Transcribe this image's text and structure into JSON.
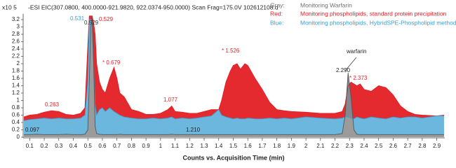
{
  "chart_data": {
    "type": "line",
    "y_label": "x10 5",
    "scan_label": "-ESI EIC(307.0800, 400.0000-921.9820, 922.0374-950.0000) Scan Frag=175.0V 102612108.d",
    "legend": [
      {
        "key": "Gray:",
        "text": "Monitoring Warfarin",
        "color": "#6f6f6f"
      },
      {
        "key": "Red:",
        "text": "Monitoring phospholipids, standard protein precipitation",
        "color": "#e31e24"
      },
      {
        "key": "Blue:",
        "text": "Monitoring phospholipids, HybridSPE-Phospholipid method",
        "color": "#3a9fd2"
      }
    ],
    "x_label": "Counts vs. Acquisition Time (min)",
    "xlim": [
      0.055,
      2.955
    ],
    "ylim": [
      0,
      3.3
    ],
    "xticks": [
      0.1,
      0.2,
      0.3,
      0.4,
      0.5,
      0.6,
      0.7,
      0.8,
      0.9,
      1,
      1.1,
      1.2,
      1.3,
      1.4,
      1.5,
      1.6,
      1.7,
      1.8,
      1.9,
      2,
      2.1,
      2.2,
      2.3,
      2.4,
      2.5,
      2.6,
      2.7,
      2.8,
      2.9
    ],
    "yticks": [
      0,
      0.2,
      0.4,
      0.6,
      0.8,
      1,
      1.2,
      1.4,
      1.6,
      1.8,
      2,
      2.2,
      2.4,
      2.6,
      2.8,
      3,
      3.2
    ],
    "x": [
      0.06,
      0.1,
      0.15,
      0.2,
      0.25,
      0.3,
      0.35,
      0.4,
      0.45,
      0.48,
      0.5,
      0.51,
      0.52,
      0.53,
      0.54,
      0.55,
      0.56,
      0.58,
      0.6,
      0.62,
      0.65,
      0.68,
      0.7,
      0.72,
      0.75,
      0.8,
      0.85,
      0.9,
      0.95,
      1.0,
      1.05,
      1.077,
      1.1,
      1.15,
      1.2,
      1.25,
      1.3,
      1.35,
      1.4,
      1.42,
      1.45,
      1.48,
      1.5,
      1.526,
      1.55,
      1.58,
      1.6,
      1.65,
      1.7,
      1.75,
      1.8,
      1.85,
      1.9,
      2.0,
      2.1,
      2.2,
      2.25,
      2.27,
      2.29,
      2.31,
      2.33,
      2.35,
      2.373,
      2.4,
      2.45,
      2.5,
      2.55,
      2.6,
      2.65,
      2.7,
      2.75,
      2.8,
      2.9,
      2.95
    ],
    "series": [
      {
        "name": "Gray",
        "color": "#555555",
        "fill": "#8a8a8a",
        "values": [
          0.07,
          0.07,
          0.08,
          0.07,
          0.07,
          0.07,
          0.08,
          0.07,
          0.07,
          0.08,
          0.2,
          1.5,
          3.0,
          3.3,
          2.0,
          0.3,
          0.1,
          0.08,
          0.07,
          0.07,
          0.07,
          0.07,
          0.07,
          0.08,
          0.07,
          0.07,
          0.07,
          0.07,
          0.07,
          0.07,
          0.07,
          0.08,
          0.07,
          0.07,
          0.07,
          0.07,
          0.07,
          0.07,
          0.07,
          0.07,
          0.07,
          0.07,
          0.07,
          0.07,
          0.07,
          0.07,
          0.07,
          0.07,
          0.07,
          0.07,
          0.07,
          0.07,
          0.07,
          0.07,
          0.07,
          0.07,
          0.1,
          0.6,
          1.75,
          1.1,
          0.2,
          0.08,
          0.07,
          0.07,
          0.07,
          0.07,
          0.07,
          0.07,
          0.07,
          0.07,
          0.07,
          0.07,
          0.07,
          0.07
        ]
      },
      {
        "name": "Red",
        "color": "#e31e24",
        "fill": "#e31e24",
        "values": [
          0.55,
          0.6,
          0.62,
          0.68,
          0.72,
          0.7,
          0.62,
          0.6,
          0.65,
          0.8,
          2.5,
          3.3,
          3.3,
          3.3,
          3.1,
          2.8,
          2.0,
          1.5,
          1.3,
          1.2,
          1.6,
          1.9,
          1.6,
          1.2,
          1.1,
          0.75,
          0.7,
          0.62,
          0.62,
          0.65,
          0.75,
          0.85,
          0.7,
          0.68,
          0.65,
          0.65,
          0.7,
          0.75,
          0.75,
          1.0,
          1.5,
          1.8,
          1.95,
          2.0,
          1.85,
          2.0,
          1.95,
          1.6,
          1.3,
          0.95,
          0.75,
          0.72,
          0.7,
          0.68,
          0.65,
          0.65,
          0.7,
          0.9,
          1.4,
          1.5,
          1.45,
          1.4,
          1.45,
          1.3,
          1.25,
          1.4,
          1.35,
          1.15,
          0.85,
          0.7,
          0.62,
          0.6,
          0.58,
          0.6
        ]
      },
      {
        "name": "Blue",
        "color": "#3a9fd2",
        "fill": "#3a9fd2",
        "values": [
          0.45,
          0.48,
          0.5,
          0.52,
          0.5,
          0.52,
          0.5,
          0.5,
          0.52,
          0.6,
          1.5,
          3.2,
          3.2,
          3.0,
          2.0,
          0.9,
          0.6,
          0.75,
          0.8,
          0.7,
          0.8,
          0.7,
          0.65,
          0.6,
          0.55,
          0.52,
          0.5,
          0.5,
          0.52,
          0.5,
          0.52,
          0.55,
          0.5,
          0.52,
          0.5,
          0.52,
          0.55,
          0.58,
          0.75,
          0.6,
          0.55,
          0.52,
          0.5,
          0.52,
          0.5,
          0.5,
          0.52,
          0.5,
          0.5,
          0.52,
          0.5,
          0.52,
          0.5,
          0.55,
          0.52,
          0.5,
          0.52,
          0.55,
          0.55,
          0.52,
          0.5,
          0.55,
          0.52,
          0.5,
          0.55,
          0.52,
          0.5,
          0.55,
          0.52,
          0.55,
          0.55,
          0.52,
          0.58,
          0.58
        ]
      }
    ],
    "annotations": [
      {
        "text": "0.531",
        "color": "#3a9fd2"
      },
      {
        "text": "0.529",
        "color": "#e31e24"
      },
      {
        "text": "0.529",
        "color": "#333333"
      },
      {
        "text": "* 0.679",
        "color": "#e31e24"
      },
      {
        "text": "0.263",
        "color": "#e31e24"
      },
      {
        "text": "1.077",
        "color": "#e31e24"
      },
      {
        "text": "* 1.526",
        "color": "#e31e24"
      },
      {
        "text": "warfarin",
        "color": "#222222"
      },
      {
        "text": "2.290",
        "color": "#222222"
      },
      {
        "text": "* 2.373",
        "color": "#e31e24"
      },
      {
        "text": "0.097",
        "color": "#222222"
      },
      {
        "text": "1.210",
        "color": "#222222"
      }
    ]
  }
}
